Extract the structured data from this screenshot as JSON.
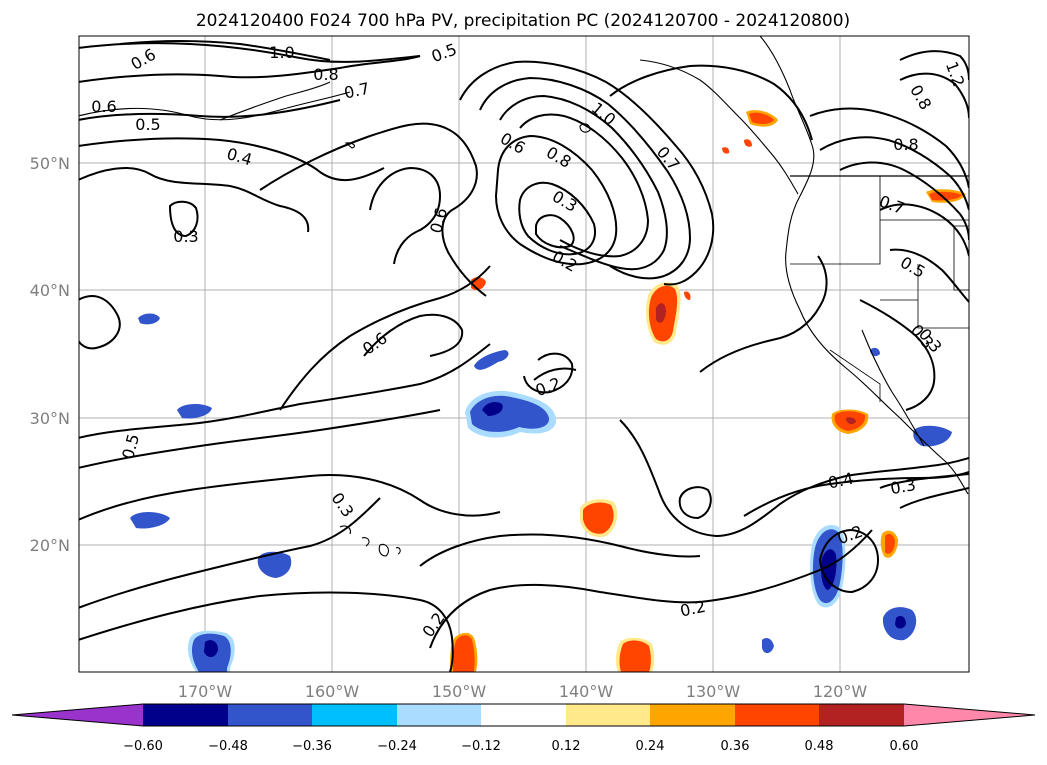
{
  "title": "2024120400 F024 700 hPa PV, precipitation PC (2024120700 - 2024120800)",
  "map": {
    "lat_labels": [
      "50°N",
      "40°N",
      "30°N",
      "20°N"
    ],
    "lon_labels": [
      "170°W",
      "160°W",
      "150°W",
      "140°W",
      "130°W",
      "120°W"
    ],
    "contour_labels": [
      "0.6",
      "1.0",
      "0.8",
      "0.7",
      "0.5",
      "0.6",
      "0.5",
      "0.4",
      "0.3",
      "1.0",
      "0.6",
      "0.8",
      "0.7",
      "0.3",
      "0.2",
      "0.6",
      "0.6",
      "0.2",
      "0.5",
      "0.3",
      "0.3",
      "0.2",
      "0.2",
      "0.4",
      "0.3",
      "0.2",
      "0.8",
      "0.8",
      "0.7",
      "0.5",
      "0.3",
      "1.2"
    ]
  },
  "colorbar": {
    "ticks": [
      "−0.60",
      "−0.48",
      "−0.36",
      "−0.24",
      "−0.12",
      "0.12",
      "0.24",
      "0.36",
      "0.48",
      "0.60"
    ],
    "colors": [
      "#9933cc",
      "#00008b",
      "#3355cc",
      "#00bfff",
      "#aadcff",
      "#ffffff",
      "#ffe98a",
      "#ffa500",
      "#ff4500",
      "#b22222",
      "#ff88aa"
    ]
  }
}
